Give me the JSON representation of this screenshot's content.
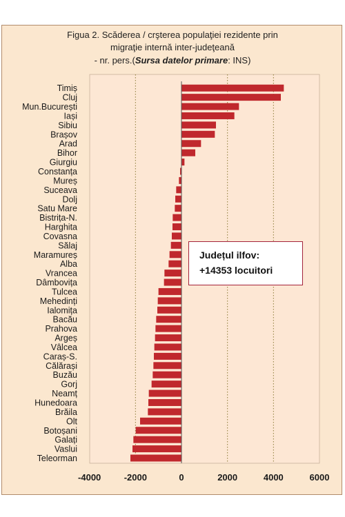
{
  "colors": {
    "bar": "#c0282d",
    "plot_bg": "#fde7d4",
    "frame_bg": "#fbe7cf",
    "grid": "#8a7a35",
    "callout_border": "#a3223a"
  },
  "chart_data": {
    "type": "bar",
    "orientation": "horizontal",
    "title": [
      "Figua 2. Scăderea / crşterea  populaţiei rezidente prin",
      "migraţie internă inter-judeţeană",
      "- nr. pers.(Sursa datelor primare: INS)"
    ],
    "categories": [
      "Timiș",
      "Cluj",
      "Mun.București",
      "Iași",
      "Sibiu",
      "Brașov",
      "Arad",
      "Bihor",
      "Giurgiu",
      "Constanța",
      "Mureș",
      "Suceava",
      "Dolj",
      "Satu Mare",
      "Bistrița-N.",
      "Harghita",
      "Covasna",
      "Sălaj",
      "Maramureș",
      "Alba",
      "Vrancea",
      "Dâmbovița",
      "Tulcea",
      "Mehedinți",
      "Ialomița",
      "Bacău",
      "Prahova",
      "Argeș",
      "Vâlcea",
      "Caraș-S.",
      "Călărași",
      "Buzău",
      "Gorj",
      "Neamț",
      "Hunedoara",
      "Brăila",
      "Olt",
      "Botoșani",
      "Galați",
      "Vaslui",
      "Teleorman"
    ],
    "values": [
      4450,
      4320,
      2500,
      2300,
      1500,
      1450,
      850,
      600,
      130,
      -60,
      -110,
      -230,
      -270,
      -290,
      -380,
      -390,
      -420,
      -460,
      -520,
      -560,
      -740,
      -760,
      -1000,
      -1030,
      -1050,
      -1100,
      -1130,
      -1150,
      -1180,
      -1200,
      -1220,
      -1250,
      -1300,
      -1420,
      -1440,
      -1460,
      -1800,
      -1990,
      -2090,
      -2130,
      -2220
    ],
    "xlim": [
      -4000,
      6000
    ],
    "x_ticks": [
      -4000,
      -2000,
      0,
      2000,
      4000,
      6000
    ],
    "x_tick_labels": [
      "-4000",
      "-2000",
      "0",
      "2000",
      "4000",
      "6000"
    ],
    "gridlines": "vertical dotted",
    "annotation": {
      "line1": "Județul ilfov:",
      "line2": "+14353 locuitori"
    }
  }
}
